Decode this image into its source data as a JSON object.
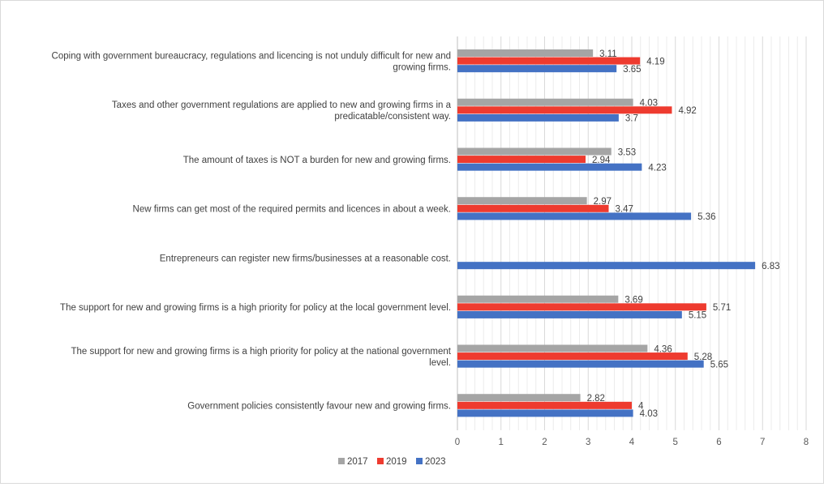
{
  "chart_data": {
    "type": "bar",
    "orientation": "horizontal",
    "title": "",
    "xlabel": "",
    "ylabel": "",
    "xlim": [
      0,
      8
    ],
    "xticks": [
      0,
      1,
      2,
      3,
      4,
      5,
      6,
      7,
      8
    ],
    "grid": "vertical",
    "legend_position": "bottom",
    "categories": [
      [
        "Coping with government bureaucracy, regulations and licencing is not unduly difficult for new and",
        "growing firms."
      ],
      [
        "Taxes and other government regulations are applied to new and growing firms in a",
        "predicatable/consistent way."
      ],
      [
        "The amount of taxes is NOT a burden for new and growing firms."
      ],
      [
        "New firms can get most of the required permits and licences in about a week."
      ],
      [
        "Entrepreneurs can register new firms/businesses at a reasonable cost."
      ],
      [
        "The support for new and growing firms is a high priority for policy at the local government level."
      ],
      [
        "The support for new and growing firms is a high priority for policy at the national government",
        "level."
      ],
      [
        "Government policies consistently favour new and growing firms."
      ]
    ],
    "series": [
      {
        "name": "2017",
        "color": "#a5a5a5",
        "values": [
          3.11,
          4.03,
          3.53,
          2.97,
          null,
          3.69,
          4.36,
          2.82
        ]
      },
      {
        "name": "2019",
        "color": "#ee3b2f",
        "values": [
          4.19,
          4.92,
          2.94,
          3.47,
          null,
          5.71,
          5.28,
          4
        ]
      },
      {
        "name": "2023",
        "color": "#4472c4",
        "values": [
          3.65,
          3.7,
          4.23,
          5.36,
          6.83,
          5.15,
          5.65,
          4.03
        ]
      }
    ]
  }
}
